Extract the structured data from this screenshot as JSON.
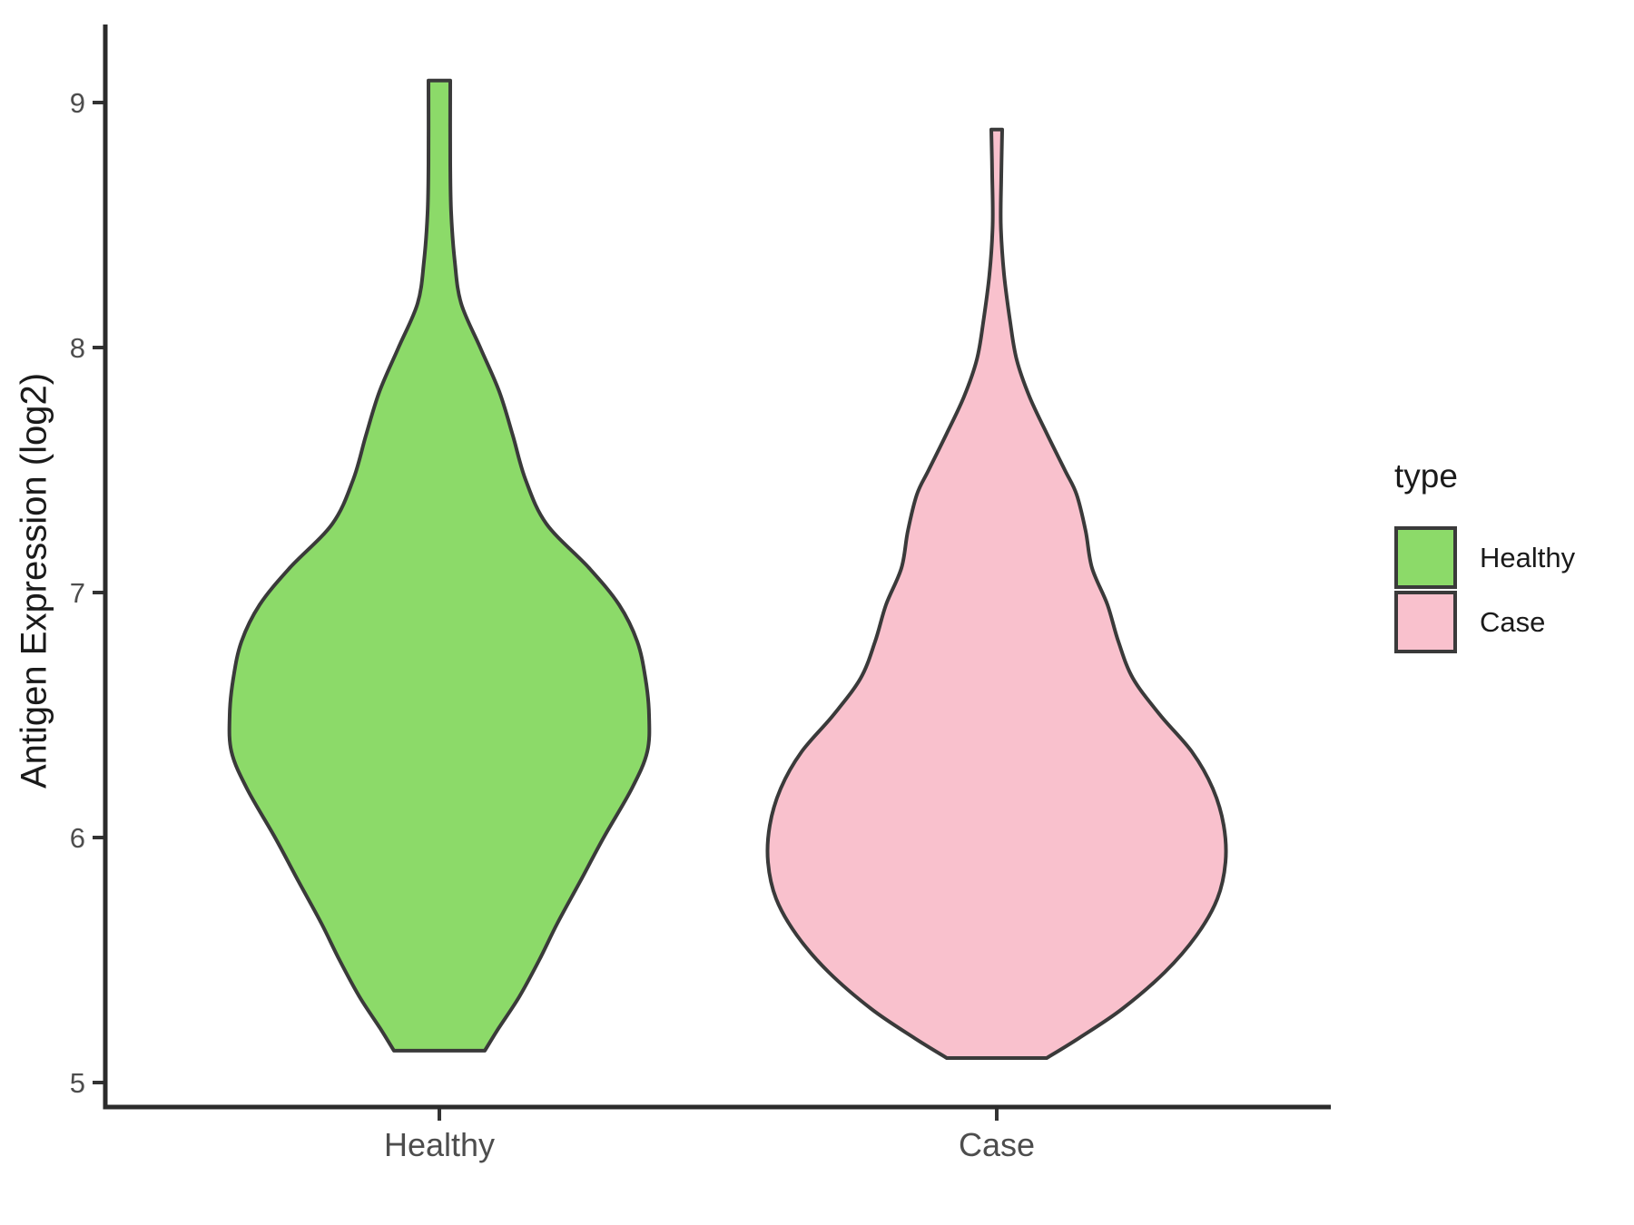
{
  "chart_data": {
    "type": "violin",
    "title": "",
    "xlabel": "",
    "ylabel": "Antigen Expression (log2)",
    "categories": [
      "Healthy",
      "Case"
    ],
    "y_ticks": [
      9,
      8,
      7,
      6,
      5
    ],
    "ylim": [
      4.9,
      9.35
    ],
    "grid": false,
    "legend": {
      "title": "type",
      "position": "right",
      "entries": [
        {
          "label": "Healthy",
          "color": "#8CDA69"
        },
        {
          "label": "Case",
          "color": "#F9C1CD"
        }
      ]
    },
    "series": [
      {
        "name": "Healthy",
        "fill": "#8CDA69",
        "outline": "#3A3A3A",
        "min": 5.13,
        "max": 9.09,
        "widest_at": 6.5,
        "profile_value_halfwidth": [
          [
            9.09,
            12
          ],
          [
            8.75,
            12
          ],
          [
            8.55,
            13
          ],
          [
            8.35,
            17
          ],
          [
            8.18,
            24
          ],
          [
            8.0,
            45
          ],
          [
            7.82,
            66
          ],
          [
            7.64,
            81
          ],
          [
            7.46,
            95
          ],
          [
            7.28,
            118
          ],
          [
            7.1,
            165
          ],
          [
            6.95,
            198
          ],
          [
            6.8,
            218
          ],
          [
            6.65,
            227
          ],
          [
            6.5,
            231
          ],
          [
            6.35,
            229
          ],
          [
            6.2,
            212
          ],
          [
            6.0,
            181
          ],
          [
            5.82,
            155
          ],
          [
            5.65,
            130
          ],
          [
            5.5,
            110
          ],
          [
            5.35,
            88
          ],
          [
            5.22,
            65
          ],
          [
            5.13,
            50
          ]
        ]
      },
      {
        "name": "Case",
        "fill": "#F9C1CD",
        "outline": "#3A3A3A",
        "min": 5.1,
        "max": 8.89,
        "widest_at": 5.95,
        "profile_value_halfwidth": [
          [
            8.89,
            6
          ],
          [
            8.7,
            5
          ],
          [
            8.5,
            4.5
          ],
          [
            8.3,
            8
          ],
          [
            8.1,
            15
          ],
          [
            7.95,
            22
          ],
          [
            7.8,
            36
          ],
          [
            7.65,
            55
          ],
          [
            7.5,
            75
          ],
          [
            7.4,
            88
          ],
          [
            7.25,
            98
          ],
          [
            7.1,
            105
          ],
          [
            6.95,
            122
          ],
          [
            6.8,
            134
          ],
          [
            6.65,
            150
          ],
          [
            6.5,
            180
          ],
          [
            6.35,
            215
          ],
          [
            6.2,
            238
          ],
          [
            6.05,
            250
          ],
          [
            5.9,
            252
          ],
          [
            5.75,
            243
          ],
          [
            5.6,
            220
          ],
          [
            5.45,
            185
          ],
          [
            5.3,
            138
          ],
          [
            5.18,
            90
          ],
          [
            5.1,
            55
          ]
        ]
      }
    ]
  }
}
